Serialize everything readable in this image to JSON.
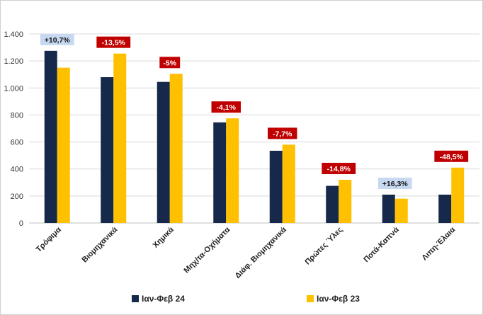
{
  "chart_data": {
    "type": "bar",
    "categories": [
      "Τρόφιμα",
      "Βιομηχανικά",
      "Χημικά",
      "Μηχ/τα-Οχήματα",
      "Διάφ. Βιομηχανικά",
      "Πρώτες Ύλες",
      "Ποτά-Καπνά",
      "Λιπη-Έλαια"
    ],
    "series": [
      {
        "name": "Ιαν-Φεβ 24",
        "color": "#16294a",
        "values": [
          1275,
          1080,
          1045,
          745,
          535,
          275,
          210,
          210
        ]
      },
      {
        "name": "Ιαν-Φεβ 23",
        "color": "#ffc000",
        "values": [
          1150,
          1255,
          1105,
          775,
          580,
          320,
          180,
          410
        ]
      }
    ],
    "annotations": [
      {
        "text": "+10,7%",
        "type": "positive"
      },
      {
        "text": "-13,5%",
        "type": "negative"
      },
      {
        "text": "-5%",
        "type": "negative"
      },
      {
        "text": "-4,1%",
        "type": "negative"
      },
      {
        "text": "-7,7%",
        "type": "negative"
      },
      {
        "text": "-14,8%",
        "type": "negative"
      },
      {
        "text": "+16,3%",
        "type": "positive"
      },
      {
        "text": "-48,5%",
        "type": "negative"
      }
    ],
    "ylim": [
      0,
      1400
    ],
    "yticks": [
      0,
      200,
      400,
      600,
      800,
      1000,
      1200,
      1400
    ],
    "ytick_labels": [
      "0",
      "200",
      "400",
      "600",
      "800",
      "1.000",
      "1.200",
      "1.400"
    ],
    "grid": true,
    "legend_position": "bottom",
    "title": "",
    "xlabel": "",
    "ylabel": ""
  },
  "colors": {
    "positive_badge_bg": "#c6d9f1",
    "positive_badge_text": "#111111",
    "negative_badge_bg": "#c00000",
    "negative_badge_text": "#ffffff",
    "grid": "#d9d9d9"
  }
}
